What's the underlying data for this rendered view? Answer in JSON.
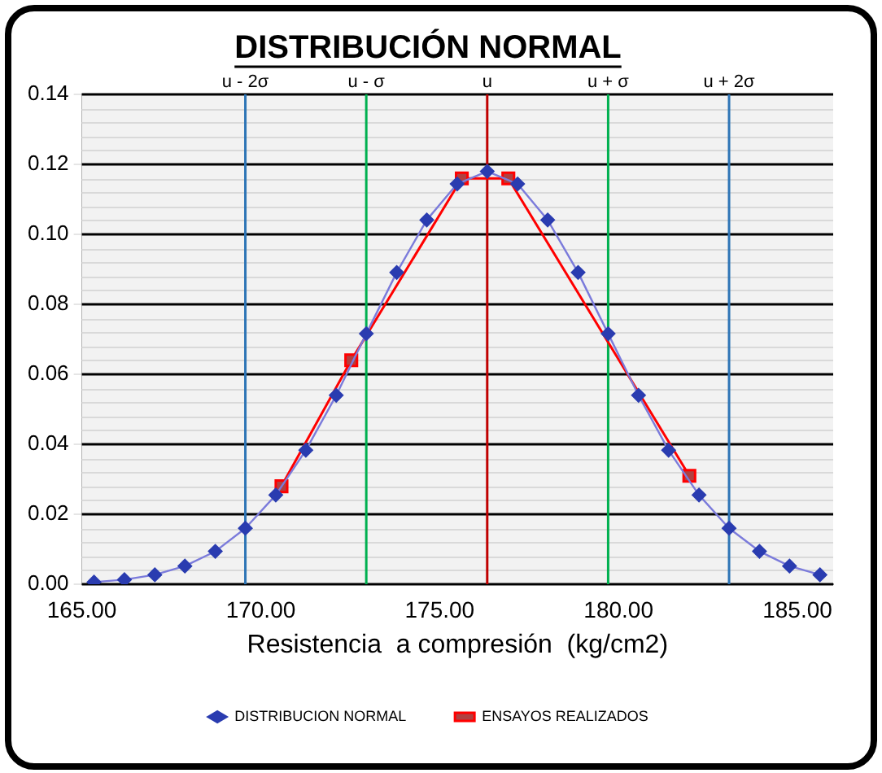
{
  "chart_data": {
    "type": "line",
    "title": "DISTRIBUCIÓN NORMAL",
    "xlabel": "Resistencia  a compresión  (kg/cm2)",
    "xlim": [
      165,
      186
    ],
    "xticks": [
      {
        "value": 165,
        "label": "165.00"
      },
      {
        "value": 170,
        "label": "170.00"
      },
      {
        "value": 175,
        "label": "175.00"
      },
      {
        "value": 180,
        "label": "180.00"
      },
      {
        "value": 185,
        "label": "185.00"
      }
    ],
    "ylim": [
      0,
      0.14
    ],
    "yticks": [
      {
        "value": 0,
        "label": "0.00"
      },
      {
        "value": 0.02,
        "label": "0.02"
      },
      {
        "value": 0.04,
        "label": "0.04"
      },
      {
        "value": 0.06,
        "label": "0.06"
      },
      {
        "value": 0.08,
        "label": "0.08"
      },
      {
        "value": 0.1,
        "label": "0.10"
      },
      {
        "value": 0.12,
        "label": "0.12"
      },
      {
        "value": 0.14,
        "label": "0.14"
      }
    ],
    "grid": "y",
    "legend": "bottom",
    "series": [
      {
        "name": "DISTRIBUCION NORMAL",
        "color": "#7b7bdb",
        "marker": "diamond",
        "x": [
          165.34,
          166.19,
          167.04,
          167.88,
          168.73,
          169.57,
          170.42,
          171.26,
          172.11,
          172.95,
          173.8,
          174.64,
          175.49,
          176.33,
          177.18,
          178.02,
          178.87,
          179.71,
          180.56,
          181.4,
          182.25,
          183.09,
          183.94,
          184.78,
          185.63
        ],
        "values": [
          0.0006,
          0.0013,
          0.0027,
          0.0052,
          0.0094,
          0.016,
          0.0255,
          0.0383,
          0.054,
          0.0716,
          0.0891,
          0.1041,
          0.1144,
          0.118,
          0.1144,
          0.1041,
          0.0891,
          0.0716,
          0.054,
          0.0383,
          0.0255,
          0.016,
          0.0094,
          0.0052,
          0.0027
        ]
      },
      {
        "name": "ENSAYOS REALIZADOS",
        "color": "#ff0000",
        "marker": "square",
        "x": [
          170.58,
          172.53,
          175.62,
          176.92,
          181.98
        ],
        "values": [
          0.028,
          0.064,
          0.116,
          0.116,
          0.031
        ]
      }
    ],
    "ref_lines": [
      {
        "axis": "x",
        "value": 169.57,
        "label": "u - 2σ",
        "color": "#2e75b6"
      },
      {
        "axis": "x",
        "value": 172.95,
        "label": "u - σ",
        "color": "#00b050"
      },
      {
        "axis": "x",
        "value": 176.33,
        "label": "u",
        "color": "#c00000"
      },
      {
        "axis": "x",
        "value": 179.71,
        "label": "u + σ",
        "color": "#00b050"
      },
      {
        "axis": "x",
        "value": 183.09,
        "label": "u + 2σ",
        "color": "#2e75b6"
      }
    ]
  }
}
